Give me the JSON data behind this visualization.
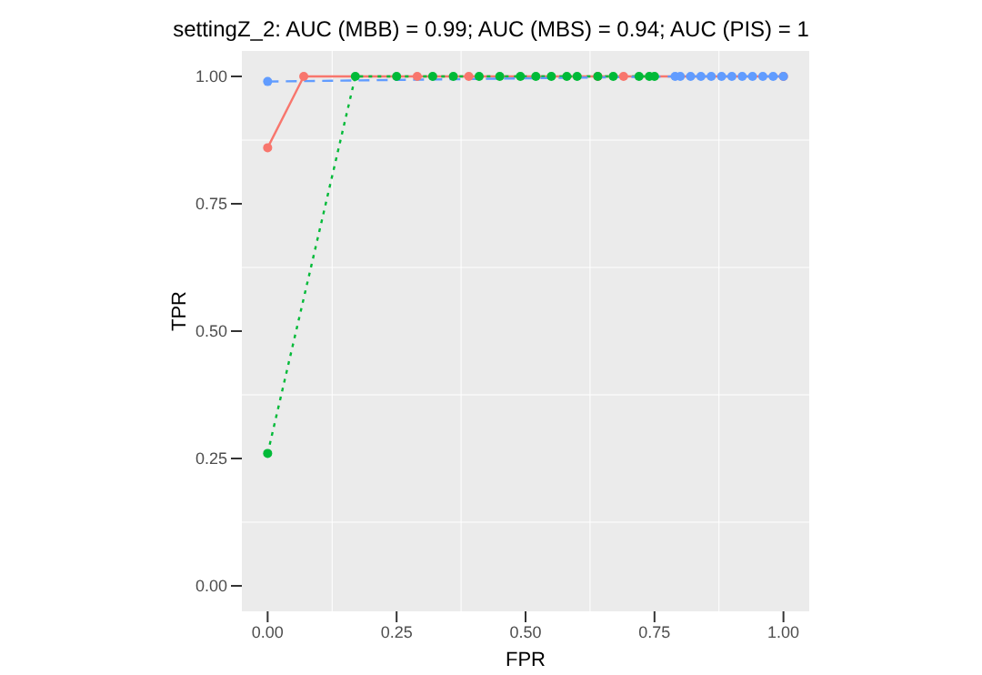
{
  "chart_data": {
    "type": "line",
    "title": "settingZ_2: AUC (MBB) = 0.99; AUC (MBS) = 0.94; AUC (PIS) = 1",
    "xlabel": "FPR",
    "ylabel": "TPR",
    "xlim": [
      -0.05,
      1.05
    ],
    "ylim": [
      -0.05,
      1.05
    ],
    "xticks": [
      {
        "value": 0,
        "label": "0.00"
      },
      {
        "value": 0.25,
        "label": "0.25"
      },
      {
        "value": 0.5,
        "label": "0.50"
      },
      {
        "value": 0.75,
        "label": "0.75"
      },
      {
        "value": 1,
        "label": "1.00"
      }
    ],
    "yticks": [
      {
        "value": 0,
        "label": "0.00"
      },
      {
        "value": 0.25,
        "label": "0.25"
      },
      {
        "value": 0.5,
        "label": "0.50"
      },
      {
        "value": 0.75,
        "label": "0.75"
      },
      {
        "value": 1,
        "label": "1.00"
      }
    ],
    "grid": true,
    "legend": false,
    "marker": "circle",
    "series": [
      {
        "color": "#f8766d",
        "line_style": "solid",
        "x": [
          0,
          0.07,
          0.29,
          0.39,
          0.64,
          0.69,
          1
        ],
        "values": [
          0.86,
          1,
          1,
          1,
          1,
          1,
          1
        ]
      },
      {
        "color": "#00ba38",
        "line_style": "dotted",
        "x": [
          0,
          0.17,
          0.25,
          0.32,
          0.36,
          0.41,
          0.45,
          0.49,
          0.52,
          0.55,
          0.58,
          0.6,
          0.64,
          0.67,
          0.72,
          0.74,
          0.75
        ],
        "values": [
          0.26,
          1,
          1,
          1,
          1,
          1,
          1,
          1,
          1,
          1,
          1,
          1,
          1,
          1,
          1,
          1,
          1
        ]
      },
      {
        "color": "#619cff",
        "line_style": "dashed",
        "x": [
          0,
          0.79,
          0.8,
          0.82,
          0.84,
          0.86,
          0.88,
          0.9,
          0.92,
          0.94,
          0.96,
          0.98,
          1
        ],
        "values": [
          0.99,
          1,
          1,
          1,
          1,
          1,
          1,
          1,
          1,
          1,
          1,
          1,
          1
        ]
      }
    ]
  }
}
